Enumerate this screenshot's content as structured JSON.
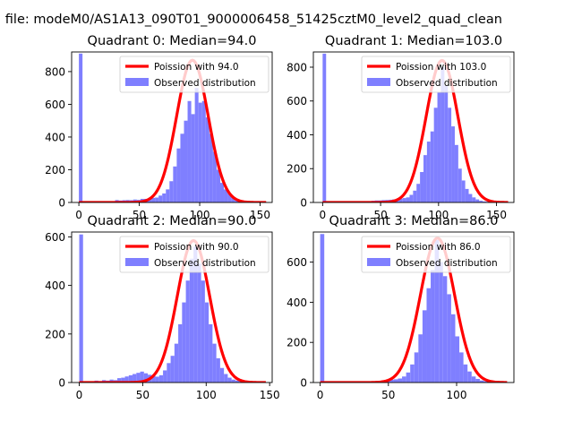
{
  "figure": {
    "suptitle": "n file: modeM0/AS1A13_090T01_9000006458_51425cztM0_level2_quad_clean"
  },
  "colors": {
    "poisson": "#ff0000",
    "observed": "#7f7fff",
    "axis": "#000000"
  },
  "chart_data": [
    {
      "type": "histogram+line",
      "title": "Quadrant 0: Median=94.0",
      "legend": [
        "Poission with 94.0",
        "Observed distribution"
      ],
      "legend_position": "top-right",
      "median": 94.0,
      "xlim": [
        -6,
        160
      ],
      "ylim": [
        0,
        920
      ],
      "xticks": [
        0,
        50,
        100,
        150
      ],
      "xtick_labels": [
        "0",
        "50",
        "100",
        "150"
      ],
      "yticks": [
        0,
        200,
        400,
        600,
        800
      ],
      "ytick_labels": [
        "0",
        "200",
        "400",
        "600",
        "800"
      ],
      "poisson_peak": 870,
      "bin_width": 3,
      "observed_bins": [
        [
          0,
          910
        ],
        [
          3,
          0
        ],
        [
          6,
          0
        ],
        [
          9,
          0
        ],
        [
          12,
          0
        ],
        [
          15,
          0
        ],
        [
          18,
          0
        ],
        [
          21,
          0
        ],
        [
          24,
          0
        ],
        [
          27,
          0
        ],
        [
          30,
          15
        ],
        [
          33,
          12
        ],
        [
          36,
          14
        ],
        [
          39,
          15
        ],
        [
          42,
          14
        ],
        [
          45,
          18
        ],
        [
          48,
          16
        ],
        [
          51,
          22
        ],
        [
          54,
          22
        ],
        [
          57,
          25
        ],
        [
          60,
          28
        ],
        [
          63,
          30
        ],
        [
          66,
          42
        ],
        [
          69,
          55
        ],
        [
          72,
          80
        ],
        [
          75,
          130
        ],
        [
          78,
          220
        ],
        [
          81,
          330
        ],
        [
          84,
          420
        ],
        [
          87,
          500
        ],
        [
          90,
          620
        ],
        [
          93,
          540
        ],
        [
          96,
          700
        ],
        [
          99,
          610
        ],
        [
          102,
          620
        ],
        [
          105,
          520
        ],
        [
          108,
          420
        ],
        [
          111,
          310
        ],
        [
          114,
          200
        ],
        [
          117,
          120
        ],
        [
          120,
          80
        ],
        [
          123,
          55
        ],
        [
          126,
          35
        ],
        [
          129,
          20
        ],
        [
          132,
          12
        ],
        [
          135,
          8
        ],
        [
          138,
          5
        ],
        [
          141,
          3
        ],
        [
          144,
          2
        ],
        [
          147,
          1
        ]
      ]
    },
    {
      "type": "histogram+line",
      "title": "Quadrant 1: Median=103.0",
      "legend": [
        "Poission with 103.0",
        "Observed distribution"
      ],
      "legend_position": "top-right",
      "median": 103.0,
      "xlim": [
        -8,
        165
      ],
      "ylim": [
        0,
        890
      ],
      "xticks": [
        0,
        50,
        100,
        150
      ],
      "xtick_labels": [
        "0",
        "50",
        "100",
        "150"
      ],
      "yticks": [
        0,
        200,
        400,
        600,
        800
      ],
      "ytick_labels": [
        "0",
        "200",
        "400",
        "600",
        "800"
      ],
      "poisson_peak": 840,
      "bin_width": 3,
      "observed_bins": [
        [
          0,
          880
        ],
        [
          3,
          0
        ],
        [
          6,
          0
        ],
        [
          9,
          0
        ],
        [
          12,
          0
        ],
        [
          15,
          0
        ],
        [
          18,
          0
        ],
        [
          21,
          0
        ],
        [
          24,
          0
        ],
        [
          27,
          0
        ],
        [
          30,
          5
        ],
        [
          33,
          5
        ],
        [
          36,
          6
        ],
        [
          39,
          8
        ],
        [
          42,
          10
        ],
        [
          45,
          12
        ],
        [
          48,
          12
        ],
        [
          51,
          14
        ],
        [
          54,
          15
        ],
        [
          57,
          16
        ],
        [
          60,
          18
        ],
        [
          63,
          20
        ],
        [
          66,
          22
        ],
        [
          69,
          26
        ],
        [
          72,
          30
        ],
        [
          75,
          45
        ],
        [
          78,
          70
        ],
        [
          81,
          110
        ],
        [
          84,
          180
        ],
        [
          87,
          280
        ],
        [
          90,
          360
        ],
        [
          93,
          420
        ],
        [
          96,
          560
        ],
        [
          99,
          650
        ],
        [
          102,
          800
        ],
        [
          105,
          690
        ],
        [
          108,
          560
        ],
        [
          111,
          450
        ],
        [
          114,
          340
        ],
        [
          117,
          200
        ],
        [
          120,
          130
        ],
        [
          123,
          80
        ],
        [
          126,
          50
        ],
        [
          129,
          30
        ],
        [
          132,
          18
        ],
        [
          135,
          10
        ],
        [
          138,
          6
        ],
        [
          141,
          4
        ],
        [
          144,
          2
        ],
        [
          147,
          1
        ]
      ]
    },
    {
      "type": "histogram+line",
      "title": "Quadrant 2: Median=90.0",
      "legend": [
        "Poission with 90.0",
        "Observed distribution"
      ],
      "legend_position": "top-right",
      "median": 90.0,
      "xlim": [
        -6,
        152
      ],
      "ylim": [
        0,
        620
      ],
      "xticks": [
        0,
        50,
        100,
        150
      ],
      "xtick_labels": [
        "0",
        "50",
        "100",
        "150"
      ],
      "yticks": [
        0,
        200,
        400,
        600
      ],
      "ytick_labels": [
        "0",
        "200",
        "400",
        "600"
      ],
      "poisson_peak": 585,
      "bin_width": 3,
      "observed_bins": [
        [
          0,
          610
        ],
        [
          3,
          0
        ],
        [
          6,
          0
        ],
        [
          9,
          0
        ],
        [
          12,
          8
        ],
        [
          15,
          6
        ],
        [
          18,
          10
        ],
        [
          21,
          8
        ],
        [
          24,
          12
        ],
        [
          27,
          10
        ],
        [
          30,
          18
        ],
        [
          33,
          20
        ],
        [
          36,
          25
        ],
        [
          39,
          30
        ],
        [
          42,
          35
        ],
        [
          45,
          40
        ],
        [
          48,
          45
        ],
        [
          51,
          38
        ],
        [
          54,
          32
        ],
        [
          57,
          28
        ],
        [
          60,
          24
        ],
        [
          63,
          30
        ],
        [
          66,
          50
        ],
        [
          69,
          80
        ],
        [
          72,
          110
        ],
        [
          75,
          160
        ],
        [
          78,
          240
        ],
        [
          81,
          330
        ],
        [
          84,
          420
        ],
        [
          87,
          510
        ],
        [
          90,
          560
        ],
        [
          93,
          490
        ],
        [
          96,
          420
        ],
        [
          99,
          330
        ],
        [
          102,
          240
        ],
        [
          105,
          160
        ],
        [
          108,
          100
        ],
        [
          111,
          60
        ],
        [
          114,
          35
        ],
        [
          117,
          20
        ],
        [
          120,
          12
        ],
        [
          123,
          8
        ],
        [
          126,
          5
        ],
        [
          129,
          3
        ],
        [
          132,
          2
        ],
        [
          135,
          1
        ],
        [
          138,
          1
        ]
      ]
    },
    {
      "type": "histogram+line",
      "title": "Quadrant 3: Median=86.0",
      "legend": [
        "Poission with 86.0",
        "Observed distribution"
      ],
      "legend_position": "top-right",
      "median": 86.0,
      "xlim": [
        -5,
        142
      ],
      "ylim": [
        0,
        750
      ],
      "xticks": [
        0,
        50,
        100
      ],
      "xtick_labels": [
        "0",
        "50",
        "100"
      ],
      "yticks": [
        0,
        200,
        400,
        600
      ],
      "ytick_labels": [
        "0",
        "200",
        "400",
        "600"
      ],
      "poisson_peak": 720,
      "bin_width": 3,
      "observed_bins": [
        [
          0,
          740
        ],
        [
          3,
          0
        ],
        [
          6,
          0
        ],
        [
          9,
          0
        ],
        [
          12,
          0
        ],
        [
          15,
          0
        ],
        [
          18,
          0
        ],
        [
          21,
          0
        ],
        [
          24,
          0
        ],
        [
          27,
          0
        ],
        [
          30,
          3
        ],
        [
          33,
          4
        ],
        [
          36,
          5
        ],
        [
          39,
          6
        ],
        [
          42,
          8
        ],
        [
          45,
          10
        ],
        [
          48,
          12
        ],
        [
          51,
          14
        ],
        [
          54,
          16
        ],
        [
          57,
          20
        ],
        [
          60,
          30
        ],
        [
          63,
          50
        ],
        [
          66,
          90
        ],
        [
          69,
          150
        ],
        [
          72,
          240
        ],
        [
          75,
          360
        ],
        [
          78,
          470
        ],
        [
          81,
          560
        ],
        [
          84,
          710
        ],
        [
          87,
          600
        ],
        [
          90,
          530
        ],
        [
          93,
          440
        ],
        [
          96,
          340
        ],
        [
          99,
          230
        ],
        [
          102,
          150
        ],
        [
          105,
          90
        ],
        [
          108,
          55
        ],
        [
          111,
          30
        ],
        [
          114,
          18
        ],
        [
          117,
          10
        ],
        [
          120,
          6
        ],
        [
          123,
          4
        ],
        [
          126,
          2
        ],
        [
          129,
          1
        ]
      ]
    }
  ]
}
